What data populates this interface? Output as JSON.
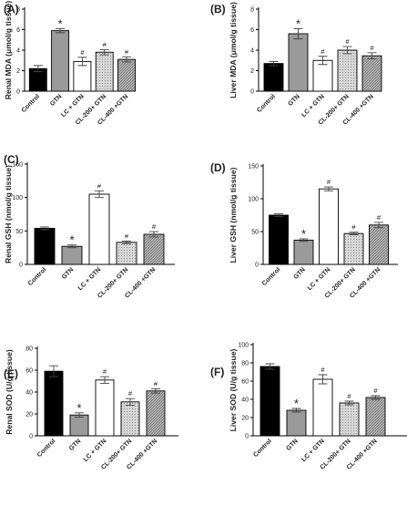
{
  "chart_data": [
    {
      "type": "bar",
      "panel": "(A)",
      "ylabel": "Renal MDA (μmol/g tissue)",
      "ylim": [
        0,
        8
      ],
      "yticks": [
        0,
        2,
        4,
        6,
        8
      ],
      "categories": [
        "Control",
        "GTN",
        "LC + GTN",
        "CL-200+ GTN",
        "CL-400 +GTN"
      ],
      "values": [
        2.2,
        5.9,
        2.9,
        3.8,
        3.1
      ],
      "errors": [
        0.3,
        0.2,
        0.4,
        0.25,
        0.25
      ],
      "annotations": [
        "",
        "*",
        "#",
        "#",
        "#"
      ]
    },
    {
      "type": "bar",
      "panel": "(B)",
      "ylabel": "Liver MDA (μmol/g tissue)",
      "ylim": [
        0,
        8
      ],
      "yticks": [
        0,
        2,
        4,
        6,
        8
      ],
      "categories": [
        "Control",
        "GTN",
        "LC + GTN",
        "CL-200+ GTN",
        "CL-400 +GTN"
      ],
      "values": [
        2.7,
        5.6,
        3.0,
        4.0,
        3.45
      ],
      "errors": [
        0.2,
        0.5,
        0.4,
        0.35,
        0.3
      ],
      "annotations": [
        "",
        "*",
        "#",
        "#",
        "#"
      ]
    },
    {
      "type": "bar",
      "panel": "(C)",
      "ylabel": "Renal GSH (nmol/g tissue)",
      "ylim": [
        0,
        150
      ],
      "yticks": [
        0,
        50,
        100,
        150
      ],
      "categories": [
        "Control",
        "GTN",
        "LC + GTN",
        "CL-200+ GTN",
        "CL-400 +GTN"
      ],
      "values": [
        54,
        27,
        105,
        33,
        45
      ],
      "errors": [
        2,
        2,
        5,
        2,
        4
      ],
      "annotations": [
        "",
        "*",
        "#",
        "#",
        "#"
      ]
    },
    {
      "type": "bar",
      "panel": "(D)",
      "ylabel": "Liver GSH (nmol/g tissue)",
      "ylim": [
        0,
        150
      ],
      "yticks": [
        0,
        50,
        100,
        150
      ],
      "categories": [
        "Control",
        "GTN",
        "LC + GTN",
        "CL-200+ GTN",
        "CL-400 +GTN"
      ],
      "values": [
        75,
        37,
        115,
        47,
        60
      ],
      "errors": [
        2,
        2,
        3,
        2,
        4
      ],
      "annotations": [
        "",
        "*",
        "#",
        "#",
        "#"
      ]
    },
    {
      "type": "bar",
      "panel": "(E)",
      "ylabel": "Renal SOD (U/g tissue)",
      "ylim": [
        0,
        80
      ],
      "yticks": [
        0,
        20,
        40,
        60,
        80
      ],
      "categories": [
        "Control",
        "GTN",
        "LC + GTN",
        "CL-200+ GTN",
        "CL-400 +GTN"
      ],
      "values": [
        59,
        19,
        51,
        31,
        41
      ],
      "errors": [
        5,
        2,
        3,
        3,
        2
      ],
      "annotations": [
        "",
        "*",
        "#",
        "#",
        "#"
      ]
    },
    {
      "type": "bar",
      "panel": "(F)",
      "ylabel": "Liver SOD (U/g tissue)",
      "ylim": [
        0,
        100
      ],
      "yticks": [
        0,
        20,
        40,
        60,
        80,
        100
      ],
      "categories": [
        "Control",
        "GTN",
        "LC + GTN",
        "CL-200+ GTN",
        "CL-400 +GTN"
      ],
      "values": [
        76,
        28,
        62,
        36,
        42
      ],
      "errors": [
        3,
        2,
        5,
        2,
        2
      ],
      "annotations": [
        "",
        "*",
        "#",
        "#",
        "#"
      ]
    }
  ],
  "bar_styles": [
    {
      "fill": "#000000",
      "pattern": "none"
    },
    {
      "fill": "#9a9a9a",
      "pattern": "none"
    },
    {
      "fill": "#ffffff",
      "pattern": "none"
    },
    {
      "fill": "#d2d2d2",
      "pattern": "dots"
    },
    {
      "fill": "#a8a8a8",
      "pattern": "hatch"
    }
  ]
}
